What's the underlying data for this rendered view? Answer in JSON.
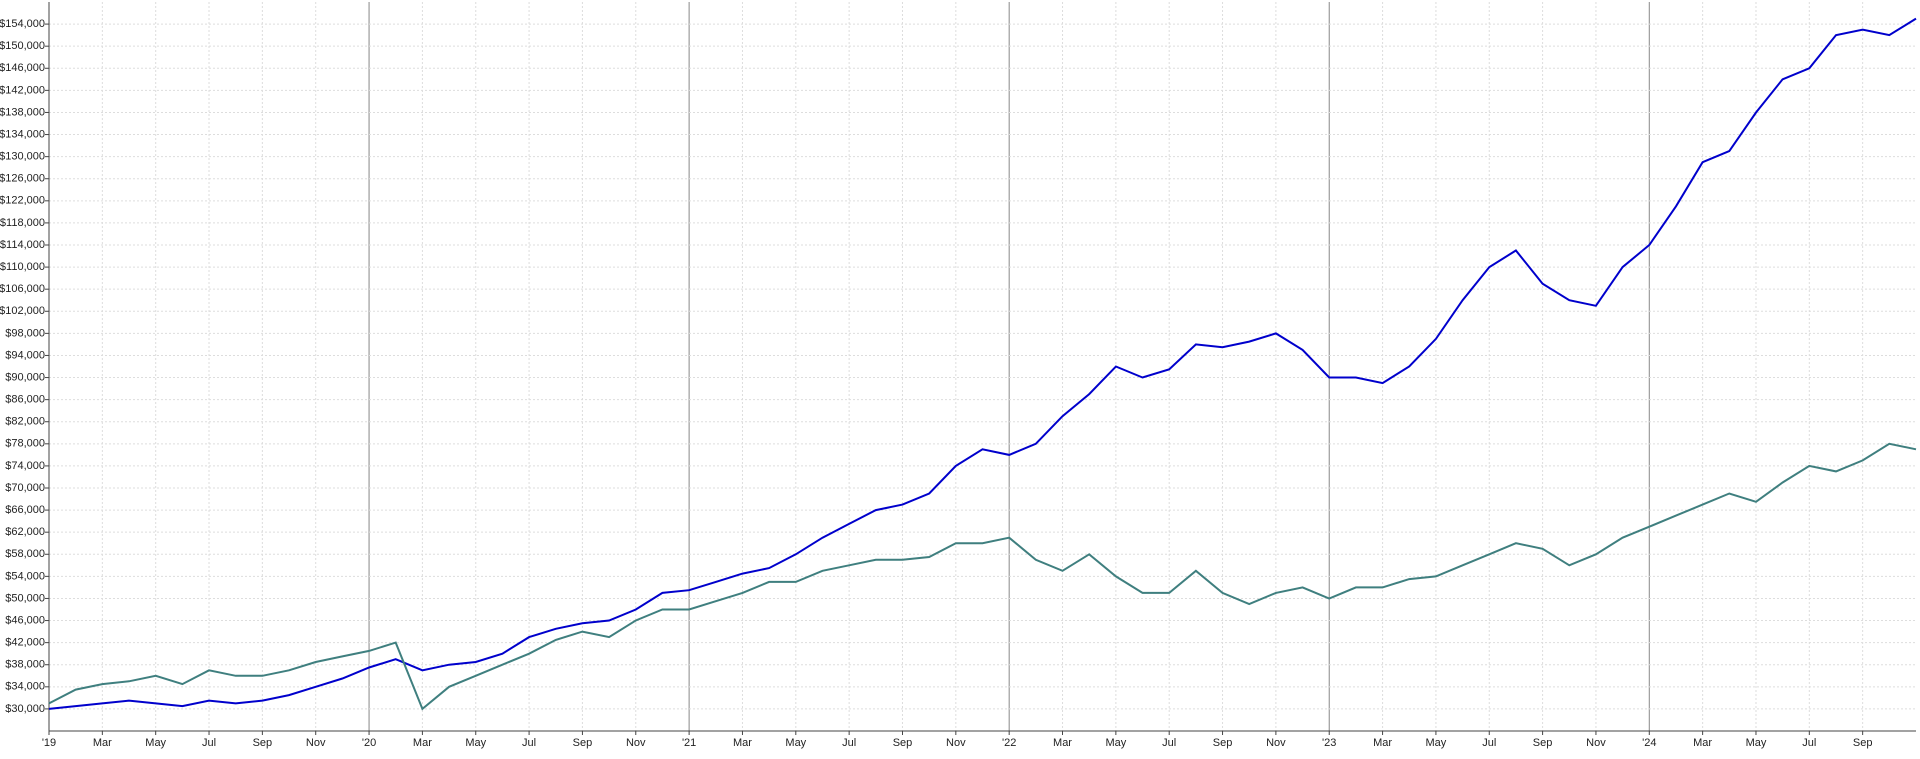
{
  "chart_data": {
    "type": "line",
    "x": [
      "2019-01",
      "2019-02",
      "2019-03",
      "2019-04",
      "2019-05",
      "2019-06",
      "2019-07",
      "2019-08",
      "2019-09",
      "2019-10",
      "2019-11",
      "2019-12",
      "2020-01",
      "2020-02",
      "2020-03",
      "2020-04",
      "2020-05",
      "2020-06",
      "2020-07",
      "2020-08",
      "2020-09",
      "2020-10",
      "2020-11",
      "2020-12",
      "2021-01",
      "2021-02",
      "2021-03",
      "2021-04",
      "2021-05",
      "2021-06",
      "2021-07",
      "2021-08",
      "2021-09",
      "2021-10",
      "2021-11",
      "2021-12",
      "2022-01",
      "2022-02",
      "2022-03",
      "2022-04",
      "2022-05",
      "2022-06",
      "2022-07",
      "2022-08",
      "2022-09",
      "2022-10",
      "2022-11",
      "2022-12",
      "2023-01",
      "2023-02",
      "2023-03",
      "2023-04",
      "2023-05",
      "2023-06",
      "2023-07",
      "2023-08",
      "2023-09",
      "2023-10",
      "2023-11",
      "2023-12",
      "2024-01",
      "2024-02",
      "2024-03",
      "2024-04",
      "2024-05",
      "2024-06",
      "2024-07",
      "2024-08",
      "2024-09",
      "2024-10",
      "2024-11"
    ],
    "series": [
      {
        "color": "#0000cc",
        "values": [
          30000,
          30500,
          31000,
          31500,
          31000,
          30500,
          31500,
          31000,
          31500,
          32500,
          34000,
          35500,
          37500,
          39000,
          37000,
          38000,
          38500,
          40000,
          43000,
          44500,
          45500,
          46000,
          48000,
          51000,
          51500,
          53000,
          54500,
          55500,
          58000,
          61000,
          63500,
          66000,
          67000,
          69000,
          74000,
          77000,
          76000,
          78000,
          83000,
          87000,
          92000,
          90000,
          91500,
          96000,
          95500,
          96500,
          98000,
          95000,
          90000,
          90000,
          89000,
          92000,
          97000,
          104000,
          110000,
          113000,
          107000,
          104000,
          103000,
          110000,
          114000,
          121000,
          129000,
          131000,
          138000,
          144000,
          146000,
          152000,
          153000,
          152000,
          155000
        ]
      },
      {
        "color": "#3f7f7f",
        "values": [
          31000,
          33500,
          34500,
          35000,
          36000,
          34500,
          37000,
          36000,
          36000,
          37000,
          38500,
          39500,
          40500,
          42000,
          30000,
          34000,
          36000,
          38000,
          40000,
          42500,
          44000,
          43000,
          46000,
          48000,
          48000,
          49500,
          51000,
          53000,
          53000,
          55000,
          56000,
          57000,
          57000,
          57500,
          60000,
          60000,
          61000,
          57000,
          55000,
          58000,
          54000,
          51000,
          51000,
          55000,
          51000,
          49000,
          51000,
          52000,
          50000,
          52000,
          52000,
          53500,
          54000,
          56000,
          58000,
          60000,
          59000,
          56000,
          58000,
          61000,
          63000,
          65000,
          67000,
          69000,
          67500,
          71000,
          74000,
          73000,
          75000,
          78000,
          77000
        ]
      }
    ],
    "xlim": [
      "2019-01",
      "2024-11"
    ],
    "xticks": [
      {
        "value": "2019-01",
        "label": "'19"
      },
      {
        "value": "2019-03",
        "label": "Mar"
      },
      {
        "value": "2019-05",
        "label": "May"
      },
      {
        "value": "2019-07",
        "label": "Jul"
      },
      {
        "value": "2019-09",
        "label": "Sep"
      },
      {
        "value": "2019-11",
        "label": "Nov"
      },
      {
        "value": "2020-01",
        "label": "'20"
      },
      {
        "value": "2020-03",
        "label": "Mar"
      },
      {
        "value": "2020-05",
        "label": "May"
      },
      {
        "value": "2020-07",
        "label": "Jul"
      },
      {
        "value": "2020-09",
        "label": "Sep"
      },
      {
        "value": "2020-11",
        "label": "Nov"
      },
      {
        "value": "2021-01",
        "label": "'21"
      },
      {
        "value": "2021-03",
        "label": "Mar"
      },
      {
        "value": "2021-05",
        "label": "May"
      },
      {
        "value": "2021-07",
        "label": "Jul"
      },
      {
        "value": "2021-09",
        "label": "Sep"
      },
      {
        "value": "2021-11",
        "label": "Nov"
      },
      {
        "value": "2022-01",
        "label": "'22"
      },
      {
        "value": "2022-03",
        "label": "Mar"
      },
      {
        "value": "2022-05",
        "label": "May"
      },
      {
        "value": "2022-07",
        "label": "Jul"
      },
      {
        "value": "2022-09",
        "label": "Sep"
      },
      {
        "value": "2022-11",
        "label": "Nov"
      },
      {
        "value": "2023-01",
        "label": "'23"
      },
      {
        "value": "2023-03",
        "label": "Mar"
      },
      {
        "value": "2023-05",
        "label": "May"
      },
      {
        "value": "2023-07",
        "label": "Jul"
      },
      {
        "value": "2023-09",
        "label": "Sep"
      },
      {
        "value": "2023-11",
        "label": "Nov"
      },
      {
        "value": "2024-01",
        "label": "'24"
      },
      {
        "value": "2024-03",
        "label": "Mar"
      },
      {
        "value": "2024-05",
        "label": "May"
      },
      {
        "value": "2024-07",
        "label": "Jul"
      },
      {
        "value": "2024-09",
        "label": "Sep"
      }
    ],
    "ylim": [
      26000,
      158000
    ],
    "yticks": [
      {
        "value": 30000,
        "label": "$30,000"
      },
      {
        "value": 34000,
        "label": "$34,000"
      },
      {
        "value": 38000,
        "label": "$38,000"
      },
      {
        "value": 42000,
        "label": "$42,000"
      },
      {
        "value": 46000,
        "label": "$46,000"
      },
      {
        "value": 50000,
        "label": "$50,000"
      },
      {
        "value": 54000,
        "label": "$54,000"
      },
      {
        "value": 58000,
        "label": "$58,000"
      },
      {
        "value": 62000,
        "label": "$62,000"
      },
      {
        "value": 66000,
        "label": "$66,000"
      },
      {
        "value": 70000,
        "label": "$70,000"
      },
      {
        "value": 74000,
        "label": "$74,000"
      },
      {
        "value": 78000,
        "label": "$78,000"
      },
      {
        "value": 82000,
        "label": "$82,000"
      },
      {
        "value": 86000,
        "label": "$86,000"
      },
      {
        "value": 90000,
        "label": "$90,000"
      },
      {
        "value": 94000,
        "label": "$94,000"
      },
      {
        "value": 98000,
        "label": "$98,000"
      },
      {
        "value": 102000,
        "label": "$102,000"
      },
      {
        "value": 106000,
        "label": "$106,000"
      },
      {
        "value": 110000,
        "label": "$110,000"
      },
      {
        "value": 114000,
        "label": "$114,000"
      },
      {
        "value": 118000,
        "label": "$118,000"
      },
      {
        "value": 122000,
        "label": "$122,000"
      },
      {
        "value": 126000,
        "label": "$126,000"
      },
      {
        "value": 130000,
        "label": "$130,000"
      },
      {
        "value": 134000,
        "label": "$134,000"
      },
      {
        "value": 138000,
        "label": "$138,000"
      },
      {
        "value": 142000,
        "label": "$142,000"
      },
      {
        "value": 146000,
        "label": "$146,000"
      },
      {
        "value": 150000,
        "label": "$150,000"
      },
      {
        "value": 154000,
        "label": "$154,000"
      }
    ],
    "grid": true
  }
}
